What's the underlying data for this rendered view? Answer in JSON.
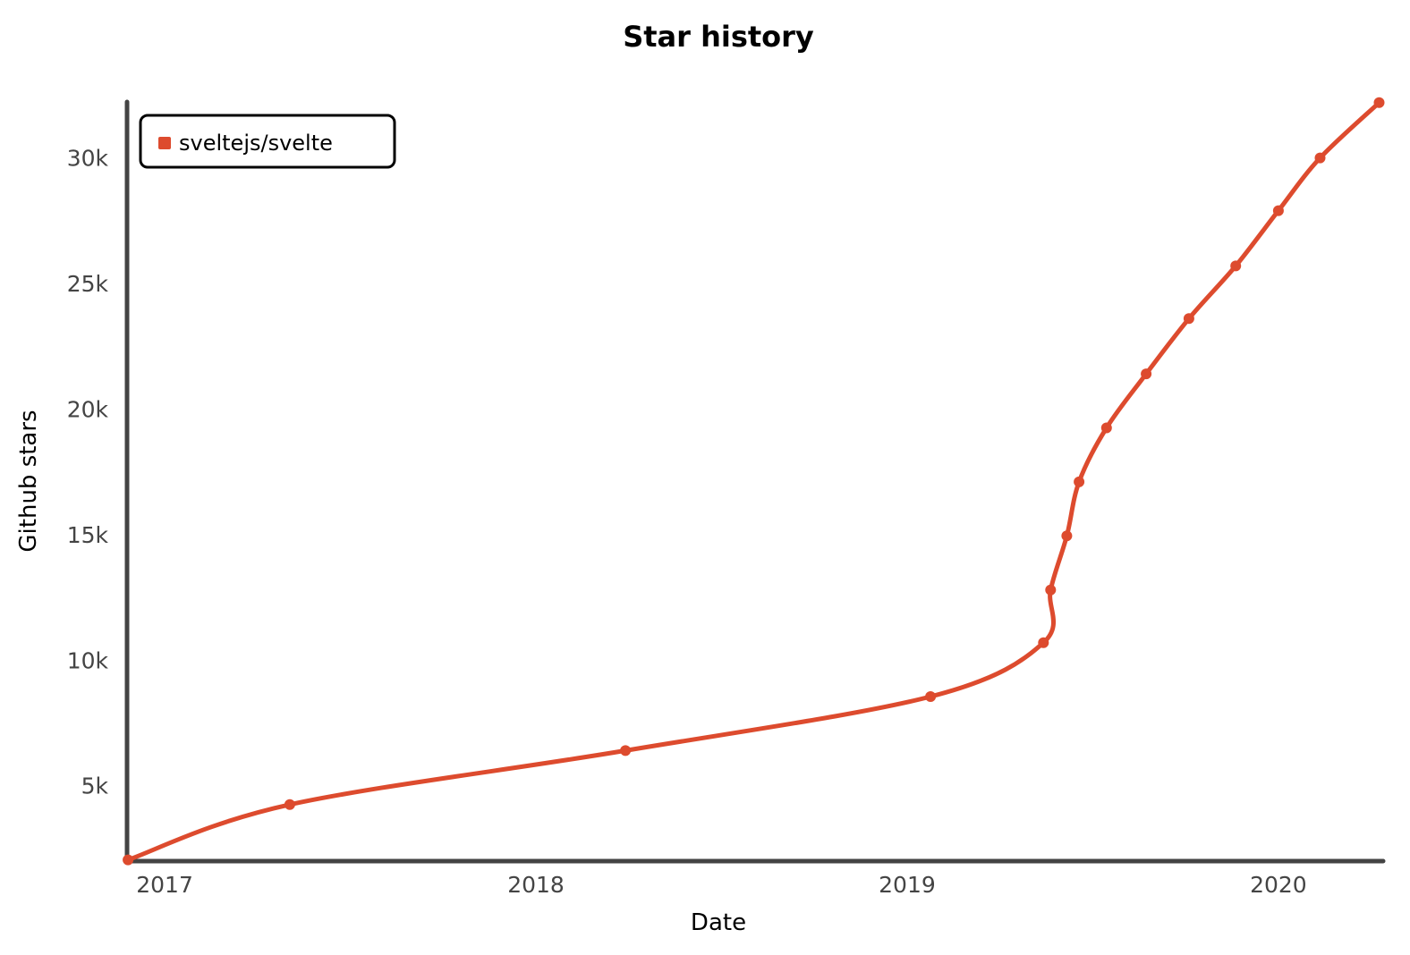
{
  "chart_data": {
    "type": "line",
    "title": "Star history",
    "xlabel": "Date",
    "ylabel": "Github stars",
    "x_ticks": [
      "2017",
      "2018",
      "2019",
      "2020"
    ],
    "y_ticks": [
      "5k",
      "10k",
      "15k",
      "20k",
      "25k",
      "30k"
    ],
    "y_tick_values": [
      5000,
      10000,
      15000,
      20000,
      25000,
      30000
    ],
    "xlim": [
      "2016-11-25",
      "2020-04-13"
    ],
    "ylim": [
      2000,
      32300
    ],
    "grid": false,
    "legend_position": "top-left",
    "series": [
      {
        "name": "sveltejs/svelte",
        "color": "#dd4b2e",
        "x": [
          "2016-11-26",
          "2017-05-04",
          "2018-03-30",
          "2019-01-24",
          "2019-05-15",
          "2019-05-22",
          "2019-06-07",
          "2019-06-19",
          "2019-07-16",
          "2019-08-24",
          "2019-10-05",
          "2019-11-20",
          "2020-01-01",
          "2020-02-11",
          "2020-04-09"
        ],
        "values": [
          2050,
          4250,
          6400,
          8550,
          10700,
          12800,
          14950,
          17100,
          19250,
          21400,
          23600,
          25700,
          27900,
          30000,
          32200
        ]
      }
    ]
  }
}
